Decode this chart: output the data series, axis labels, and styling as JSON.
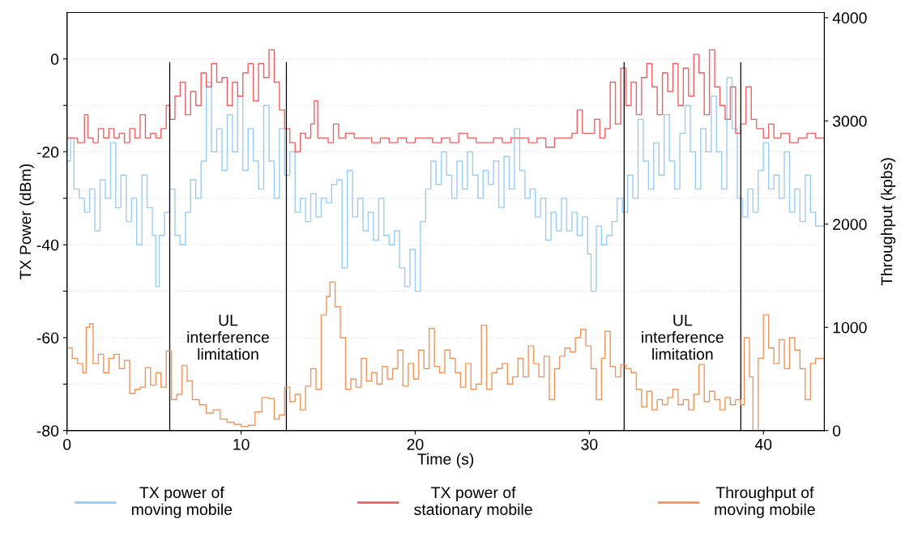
{
  "chart_data": {
    "type": "step",
    "xlabel": "Time (s)",
    "ylabel": "TX Power (dBm)",
    "y2label": "Throughput (kpbs)",
    "xlim": [
      0,
      43.5
    ],
    "xticks": [
      0,
      10,
      20,
      30,
      40
    ],
    "ylim": [
      -80,
      10
    ],
    "yticks": [
      -80,
      {
        "value": -70,
        "label": null
      },
      -60,
      {
        "value": -50,
        "label": null
      },
      -40,
      {
        "value": -30,
        "label": null
      },
      -20,
      {
        "value": -10,
        "label": null
      },
      0
    ],
    "y2lim": [
      0,
      4050
    ],
    "y2ticks": [
      0,
      1000,
      2000,
      3000,
      4000
    ],
    "grid": "y",
    "legend": "bottom",
    "line_style": "solid",
    "marker": "none",
    "ref_lines": [
      {
        "axis": "x",
        "value": 5.9,
        "color": "#000000"
      },
      {
        "axis": "x",
        "value": 12.6,
        "color": "#000000"
      },
      {
        "axis": "x",
        "value": 32.0,
        "color": "#000000"
      },
      {
        "axis": "x",
        "value": 38.7,
        "color": "#000000"
      }
    ],
    "annotations": [
      "UL\ninterference\nlimitation",
      "UL\ninterference\nlimitation"
    ],
    "series": [
      {
        "name": "TX power of\nmoving mobile",
        "color": "#99ccf5",
        "x": [
          0,
          0.2,
          0.4,
          0.7,
          1.0,
          1.3,
          1.6,
          1.9,
          2.2,
          2.5,
          2.8,
          3.1,
          3.4,
          3.7,
          4.0,
          4.3,
          4.6,
          4.9,
          5.1,
          5.3,
          5.6,
          5.9,
          6.2,
          6.5,
          6.8,
          7.1,
          7.4,
          7.7,
          8.0,
          8.3,
          8.6,
          8.9,
          9.2,
          9.5,
          9.8,
          10.1,
          10.4,
          10.7,
          11.0,
          11.3,
          11.6,
          11.9,
          12.2,
          12.5,
          12.8,
          13.1,
          13.4,
          13.7,
          14.0,
          14.3,
          14.6,
          14.9,
          15.2,
          15.5,
          15.8,
          16.1,
          16.4,
          16.7,
          17.0,
          17.3,
          17.6,
          17.9,
          18.2,
          18.5,
          18.8,
          19.1,
          19.4,
          19.7,
          20.0,
          20.3,
          20.6,
          20.9,
          21.2,
          21.5,
          21.8,
          22.1,
          22.4,
          22.7,
          23.0,
          23.3,
          23.6,
          23.9,
          24.2,
          24.5,
          24.8,
          25.1,
          25.4,
          25.7,
          26.0,
          26.3,
          26.6,
          26.9,
          27.2,
          27.5,
          27.8,
          28.1,
          28.4,
          28.7,
          29.0,
          29.3,
          29.6,
          29.9,
          30.1,
          30.4,
          30.7,
          31.0,
          31.3,
          31.6,
          31.9,
          32.2,
          32.5,
          32.8,
          33.1,
          33.4,
          33.7,
          34.0,
          34.3,
          34.6,
          34.9,
          35.2,
          35.5,
          35.8,
          36.1,
          36.4,
          36.7,
          37.0,
          37.3,
          37.6,
          37.9,
          38.2,
          38.5,
          38.8,
          39.1,
          39.4,
          39.7,
          40.0,
          40.3,
          40.6,
          40.9,
          41.2,
          41.5,
          41.8,
          42.1,
          42.4,
          42.7,
          43.0,
          43.5
        ],
        "values": [
          -22,
          -17,
          -28,
          -30,
          -33,
          -28,
          -37,
          -26,
          -30,
          -18,
          -32,
          -25,
          -35,
          -30,
          -40,
          -25,
          -32,
          -38,
          -49,
          -38,
          -33,
          -28,
          -38,
          -40,
          -33,
          -26,
          -30,
          -22,
          -5,
          -20,
          -15,
          -24,
          -12,
          -20,
          -8,
          -24,
          -15,
          -22,
          -28,
          -10,
          -22,
          -30,
          -15,
          -25,
          -20,
          -33,
          -30,
          -35,
          -29,
          -34,
          -30,
          -31,
          -27,
          -26,
          -45,
          -24,
          -34,
          -30,
          -37,
          -33,
          -39,
          -30,
          -38,
          -40,
          -37,
          -45,
          -49,
          -41,
          -50,
          -35,
          -28,
          -22,
          -27,
          -20,
          -25,
          -30,
          -22,
          -28,
          -20,
          -25,
          -30,
          -24,
          -27,
          -22,
          -32,
          -21,
          -28,
          -15,
          -24,
          -30,
          -28,
          -34,
          -30,
          -39,
          -33,
          -37,
          -30,
          -37,
          -33,
          -38,
          -34,
          -42,
          -50,
          -36,
          -40,
          -38,
          -35,
          -30,
          -33,
          -25,
          -30,
          -13,
          -22,
          -28,
          -18,
          -25,
          -12,
          -22,
          -28,
          -16,
          -10,
          -20,
          -28,
          -15,
          -20,
          -8,
          -20,
          -28,
          -4,
          -15,
          -30,
          -34,
          -28,
          -33,
          -24,
          -18,
          -28,
          -25,
          -30,
          -20,
          -33,
          -28,
          -35,
          -25,
          -33,
          -36,
          -32
        ]
      },
      {
        "name": "TX power of\nstationary mobile",
        "color": "#f06060",
        "x": [
          0,
          0.3,
          0.6,
          1.0,
          1.2,
          1.5,
          1.8,
          2.1,
          2.4,
          2.7,
          3.0,
          3.3,
          3.6,
          3.9,
          4.2,
          4.5,
          4.8,
          5.1,
          5.4,
          5.7,
          5.9,
          6.2,
          6.5,
          6.8,
          7.1,
          7.4,
          7.7,
          8.0,
          8.3,
          8.6,
          8.9,
          9.2,
          9.5,
          9.8,
          10.1,
          10.4,
          10.7,
          11.0,
          11.3,
          11.6,
          11.9,
          12.2,
          12.5,
          12.8,
          13.1,
          13.4,
          13.7,
          14.0,
          14.2,
          14.4,
          14.7,
          15.0,
          15.3,
          15.6,
          16.0,
          16.5,
          17.0,
          17.5,
          18.0,
          18.5,
          19.0,
          19.5,
          20.0,
          20.5,
          21.0,
          21.5,
          22.0,
          22.5,
          23.0,
          23.5,
          24.0,
          24.5,
          25.0,
          25.5,
          26.0,
          26.5,
          27.0,
          27.5,
          28.0,
          28.5,
          29.0,
          29.3,
          29.6,
          30.0,
          30.3,
          30.6,
          30.9,
          31.2,
          31.5,
          31.8,
          32.1,
          32.4,
          32.7,
          33.0,
          33.3,
          33.6,
          33.9,
          34.2,
          34.5,
          34.8,
          35.1,
          35.4,
          35.7,
          36.0,
          36.3,
          36.6,
          36.9,
          37.2,
          37.5,
          37.8,
          38.1,
          38.4,
          38.7,
          39.0,
          39.3,
          39.6,
          40.0,
          40.3,
          40.6,
          41.0,
          41.5,
          42.0,
          42.5,
          43.0,
          43.5
        ],
        "values": [
          -17,
          -17,
          -18,
          -12,
          -17,
          -18,
          -15,
          -17,
          -15,
          -17,
          -16,
          -18,
          -15,
          -17,
          -12,
          -17,
          -16,
          -17,
          -15,
          -10,
          -13,
          -8,
          -5,
          -12,
          -7,
          -10,
          -3,
          -6,
          -1,
          -5,
          -4,
          -10,
          -5,
          -8,
          -3,
          -1,
          -9,
          -1,
          -4,
          2,
          -5,
          -11,
          -15,
          -18,
          -20,
          -16,
          -17,
          -14,
          -9,
          -17,
          -17,
          -18,
          -14,
          -17,
          -16,
          -17,
          -17,
          -18,
          -17,
          -18,
          -17,
          -18,
          -17,
          -17,
          -18,
          -17,
          -18,
          -16,
          -17,
          -18,
          -18,
          -17,
          -18,
          -17,
          -17,
          -18,
          -17,
          -19,
          -17,
          -17,
          -16,
          -11,
          -16,
          -16,
          -13,
          -17,
          -15,
          -5,
          -14,
          -2,
          -10,
          -5,
          -12,
          -4,
          -1,
          -6,
          -12,
          -3,
          -7,
          -1,
          -10,
          -2,
          -8,
          1,
          -3,
          -12,
          2,
          -6,
          -10,
          -13,
          -6,
          -16,
          -14,
          -6,
          -13,
          -15,
          -17,
          -14,
          -17,
          -16,
          -18,
          -17,
          -16,
          -17,
          -18
        ]
      },
      {
        "name": "Throughput of\nmoving mobile",
        "color": "#f0955a",
        "axis": "y2",
        "x": [
          0,
          0.3,
          0.6,
          0.9,
          1.1,
          1.3,
          1.5,
          1.8,
          2.1,
          2.4,
          2.7,
          3.0,
          3.3,
          3.6,
          3.9,
          4.2,
          4.5,
          4.8,
          5.1,
          5.4,
          5.7,
          6.0,
          6.3,
          6.6,
          6.9,
          7.2,
          7.6,
          8.0,
          8.4,
          8.8,
          9.2,
          9.6,
          10.0,
          10.4,
          10.8,
          11.2,
          11.6,
          11.9,
          12.2,
          12.5,
          12.8,
          13.1,
          13.4,
          13.7,
          14.0,
          14.3,
          14.6,
          14.9,
          15.1,
          15.4,
          15.7,
          16.0,
          16.3,
          16.6,
          16.9,
          17.2,
          17.5,
          17.8,
          18.1,
          18.4,
          18.7,
          19.0,
          19.3,
          19.6,
          19.9,
          20.2,
          20.5,
          20.8,
          21.1,
          21.4,
          21.7,
          22.0,
          22.3,
          22.6,
          22.9,
          23.2,
          23.5,
          23.8,
          24.1,
          24.4,
          24.7,
          25.0,
          25.3,
          25.6,
          25.9,
          26.2,
          26.5,
          26.8,
          27.1,
          27.4,
          27.7,
          28.0,
          28.3,
          28.6,
          28.9,
          29.2,
          29.5,
          29.8,
          30.1,
          30.4,
          30.7,
          30.9,
          31.2,
          31.5,
          31.8,
          32.1,
          32.4,
          32.7,
          33.0,
          33.3,
          33.6,
          33.9,
          34.2,
          34.5,
          34.8,
          35.1,
          35.4,
          35.7,
          36.0,
          36.3,
          36.6,
          36.9,
          37.2,
          37.5,
          37.8,
          38.1,
          38.4,
          38.7,
          38.9,
          39.2,
          39.4,
          39.7,
          40.0,
          40.3,
          40.6,
          40.9,
          41.2,
          41.5,
          41.8,
          42.1,
          42.4,
          42.7,
          43.0,
          43.5
        ],
        "values": [
          800,
          700,
          650,
          560,
          1000,
          1035,
          650,
          740,
          560,
          700,
          740,
          600,
          680,
          360,
          400,
          420,
          610,
          440,
          560,
          420,
          770,
          300,
          350,
          630,
          480,
          300,
          250,
          170,
          200,
          110,
          80,
          60,
          40,
          50,
          180,
          320,
          310,
          110,
          150,
          420,
          280,
          350,
          200,
          430,
          600,
          400,
          1120,
          1300,
          1440,
          1200,
          900,
          400,
          500,
          420,
          700,
          480,
          560,
          450,
          620,
          500,
          600,
          780,
          430,
          650,
          500,
          780,
          600,
          990,
          620,
          560,
          780,
          700,
          560,
          420,
          650,
          400,
          450,
          1020,
          400,
          560,
          600,
          650,
          450,
          520,
          700,
          520,
          820,
          650,
          520,
          720,
          300,
          600,
          720,
          800,
          760,
          900,
          980,
          820,
          600,
          300,
          700,
          960,
          620,
          520,
          640,
          600,
          560,
          400,
          230,
          380,
          200,
          300,
          250,
          320,
          400,
          250,
          300,
          200,
          350,
          640,
          280,
          380,
          300,
          200,
          320,
          250,
          300,
          250,
          900,
          520,
          0,
          700,
          1120,
          800,
          650,
          880,
          600,
          900,
          780,
          600,
          300,
          650,
          700,
          650
        ]
      }
    ]
  }
}
